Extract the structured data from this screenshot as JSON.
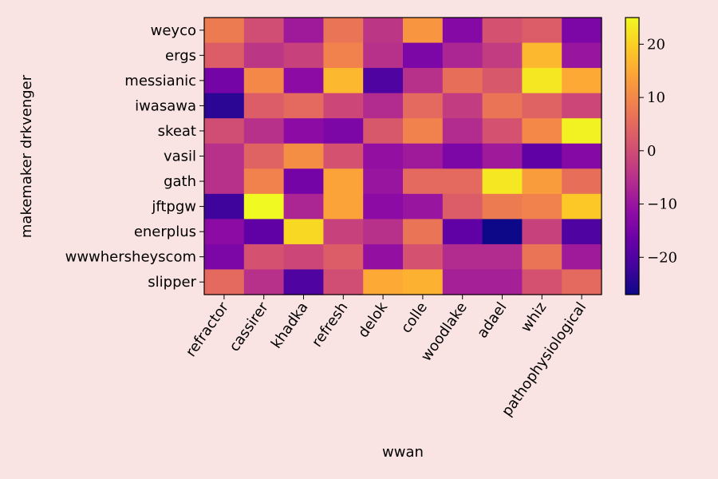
{
  "chart_data": {
    "type": "heatmap",
    "title": "",
    "xlabel": "wwan",
    "ylabel": "makemaker drkvenger",
    "x_categories": [
      "refractor",
      "cassirer",
      "khadka",
      "refresh",
      "delok",
      "colle",
      "woodlake",
      "adael",
      "whiz",
      "pathophysiological"
    ],
    "y_categories": [
      "weyco",
      "ergs",
      "messianic",
      "iwasawa",
      "skeat",
      "vasil",
      "gath",
      "jftpgw",
      "enerplus",
      "wwwhersheyscom",
      "slipper"
    ],
    "values": [
      [
        8,
        0,
        -9,
        7,
        -4,
        12,
        -13,
        1,
        3,
        -14
      ],
      [
        3,
        -4,
        -2,
        9,
        -5,
        -14,
        -7,
        -3,
        17,
        -10
      ],
      [
        -15,
        10,
        -12,
        17,
        -20,
        -5,
        6,
        2,
        23,
        15
      ],
      [
        -24,
        3,
        5,
        -1,
        -6,
        5,
        -3,
        7,
        4,
        -1
      ],
      [
        0,
        -5,
        -12,
        -14,
        2,
        9,
        -6,
        1,
        10,
        24
      ],
      [
        -5,
        4,
        11,
        1,
        -11,
        -9,
        -14,
        -9,
        -18,
        -13
      ],
      [
        -5,
        9,
        -15,
        14,
        -10,
        5,
        5,
        23,
        13,
        6
      ],
      [
        -22,
        25,
        -7,
        14,
        -12,
        -10,
        3,
        8,
        9,
        19
      ],
      [
        -12,
        -18,
        21,
        -2,
        -5,
        7,
        -18,
        -27,
        -2,
        -20
      ],
      [
        -14,
        1,
        -1,
        3,
        -11,
        1,
        -6,
        -6,
        7,
        -9
      ],
      [
        5,
        -5,
        -20,
        0,
        15,
        16,
        -8,
        -8,
        1,
        5
      ]
    ],
    "colorbar": {
      "min": -27,
      "max": 25,
      "ticks": [
        -20,
        -10,
        0,
        10,
        20
      ]
    },
    "colormap": "plasma"
  }
}
